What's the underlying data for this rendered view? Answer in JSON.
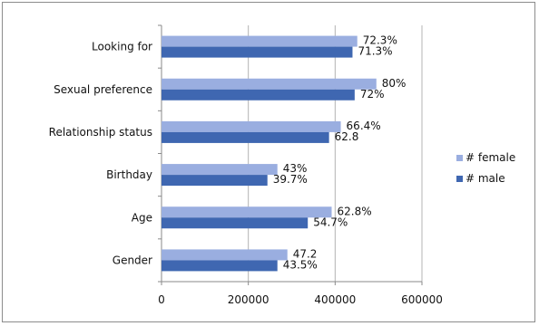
{
  "chart_data": {
    "type": "bar",
    "orientation": "horizontal",
    "categories": [
      "Gender",
      "Age",
      "Birthday",
      "Relationship status",
      "Sexual preference",
      "Looking for"
    ],
    "series": [
      {
        "name": "# female",
        "color": "#9aaee0",
        "values": [
          290000,
          392000,
          267000,
          413000,
          495000,
          451000
        ],
        "labels": [
          "47.2",
          "62.8%",
          "43%",
          "66.4%",
          "80%",
          "72.3%"
        ]
      },
      {
        "name": "# male",
        "color": "#3f67b1",
        "values": [
          267000,
          337000,
          244000,
          386000,
          445000,
          440000
        ],
        "labels": [
          "43.5%",
          "54.7%",
          "39.7%",
          "62.8",
          "72%",
          "71.3%"
        ]
      }
    ],
    "xlim": [
      0,
      600000
    ],
    "xticks": [
      0,
      200000,
      400000,
      600000
    ],
    "xtick_labels": [
      "0",
      "200000",
      "400000",
      "600000"
    ],
    "grid": "vertical",
    "legend": "right"
  }
}
